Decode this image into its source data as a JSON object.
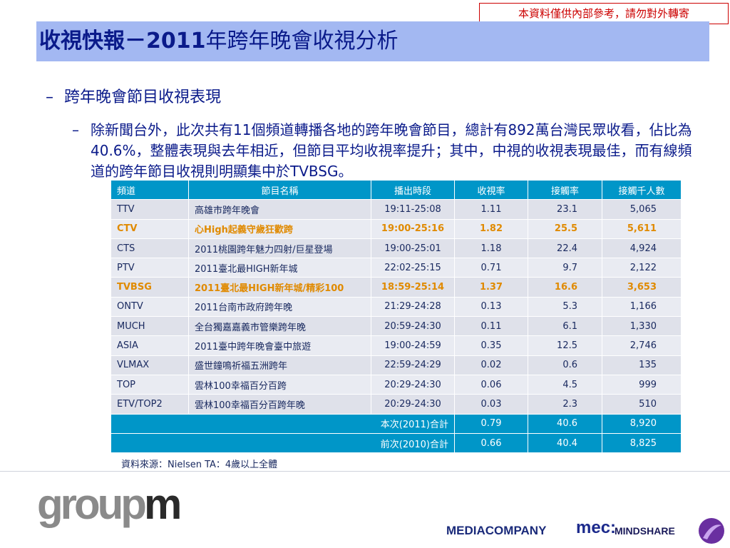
{
  "notice": "本資料僅供內部參考，請勿對外轉寄",
  "title": {
    "bold_part": "收視快報－2011",
    "rest": "年跨年晚會收視分析"
  },
  "bullet1": "跨年晚會節目收視表現",
  "bullet2": "除新聞台外，此次共有11個頻道轉播各地的跨年晚會節目，總計有892萬台灣民眾收看，佔比為40.6%，整體表現與去年相近，但節目平均收視率提升；其中，中視的收視表現最佳，而有線頻道的跨年節目收視則明顯集中於TVBSG。",
  "dash": "–",
  "table": {
    "headers": [
      "頻道",
      "節目名稱",
      "播出時段",
      "收視率",
      "接觸率",
      "接觸千人數"
    ],
    "rows": [
      {
        "channel": "TTV",
        "program": "高雄市跨年晚會",
        "time": "19:11-25:08",
        "rating": "1.11",
        "reach": "23.1",
        "reach000": "5,065",
        "highlight": false
      },
      {
        "channel": "CTV",
        "program": "心High起義守歲狂歡跨",
        "time": "19:00-25:16",
        "rating": "1.82",
        "reach": "25.5",
        "reach000": "5,611",
        "highlight": true
      },
      {
        "channel": "CTS",
        "program": "2011桃園跨年魅力四射/巨星登場",
        "time": "19:00-25:01",
        "rating": "1.18",
        "reach": "22.4",
        "reach000": "4,924",
        "highlight": false
      },
      {
        "channel": "PTV",
        "program": "2011臺北最HIGH新年城",
        "time": "22:02-25:15",
        "rating": "0.71",
        "reach": "9.7",
        "reach000": "2,122",
        "highlight": false
      },
      {
        "channel": "TVBSG",
        "program": "2011臺北最HIGH新年城/精彩100",
        "time": "18:59-25:14",
        "rating": "1.37",
        "reach": "16.6",
        "reach000": "3,653",
        "highlight": true
      },
      {
        "channel": "ONTV",
        "program": "2011台南市政府跨年晚",
        "time": "21:29-24:28",
        "rating": "0.13",
        "reach": "5.3",
        "reach000": "1,166",
        "highlight": false
      },
      {
        "channel": "MUCH",
        "program": "全台獨嘉嘉義市管樂跨年晚",
        "time": "20:59-24:30",
        "rating": "0.11",
        "reach": "6.1",
        "reach000": "1,330",
        "highlight": false
      },
      {
        "channel": "ASIA",
        "program": "2011臺中跨年晚會臺中旅遊",
        "time": "19:00-24:59",
        "rating": "0.35",
        "reach": "12.5",
        "reach000": "2,746",
        "highlight": false
      },
      {
        "channel": "VLMAX",
        "program": "盛世鐘鳴祈福五洲跨年",
        "time": "22:59-24:29",
        "rating": "0.02",
        "reach": "0.6",
        "reach000": "135",
        "highlight": false
      },
      {
        "channel": "TOP",
        "program": "雲林100幸福百分百跨",
        "time": "20:29-24:30",
        "rating": "0.06",
        "reach": "4.5",
        "reach000": "999",
        "highlight": false
      },
      {
        "channel": "ETV/TOP2",
        "program": "雲林100幸福百分百跨年晚",
        "time": "20:29-24:30",
        "rating": "0.03",
        "reach": "2.3",
        "reach000": "510",
        "highlight": false
      }
    ],
    "totals": [
      {
        "label": "本次(2011)合計",
        "rating": "0.79",
        "reach": "40.6",
        "reach000": "8,920"
      },
      {
        "label": "前次(2010)合計",
        "rating": "0.66",
        "reach": "40.4",
        "reach000": "8,825"
      }
    ]
  },
  "source": "資料來源：Nielsen TA：4歲以上全體",
  "logos": {
    "groupm_a": "group",
    "groupm_b": "m",
    "mediacompany": "MEDIACOMPANY",
    "mec": "mec:",
    "mindshare": "MINDSHARE"
  },
  "colors": {
    "title_bar": "#a3b8f2",
    "table_header": "#0096c8",
    "highlight_text": "#e08a00",
    "notice_red": "#cc0000"
  }
}
